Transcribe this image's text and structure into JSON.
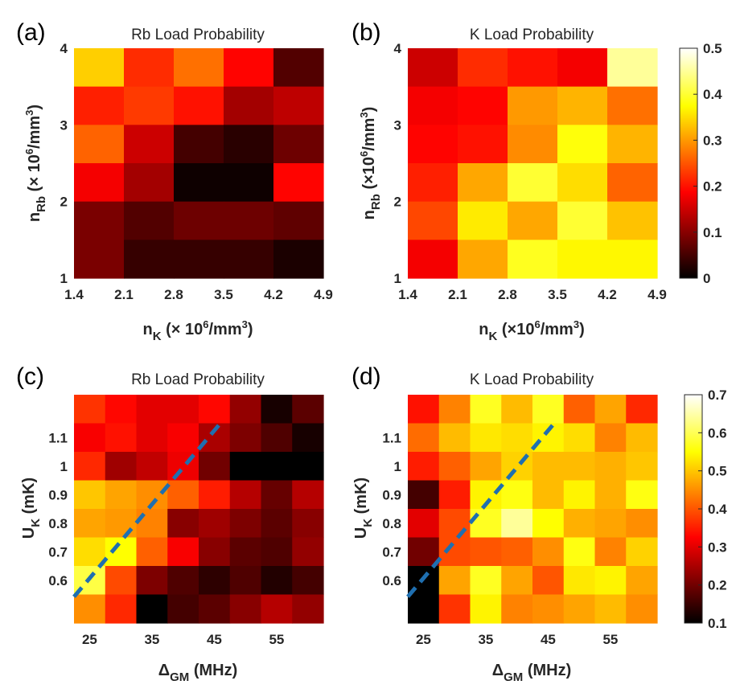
{
  "chart_data": [
    {
      "type": "heatmap",
      "panel_label": "(a)",
      "title": "Rb Load Probability",
      "xlabel": "n",
      "xlabel_sub": "K",
      "xlabel_rest": " (× 10",
      "xlabel_sup": "6",
      "xlabel_end": "/mm",
      "xlabel_sup2": "3",
      "xlabel_close": ")",
      "ylabel": "n",
      "ylabel_sub": "Rb",
      "ylabel_rest": " (× 10",
      "ylabel_sup": "6",
      "ylabel_end": "/mm",
      "ylabel_sup2": "3",
      "ylabel_close": ")",
      "xticks": [
        "1.4",
        "2.1",
        "2.8",
        "3.5",
        "4.2",
        "4.9"
      ],
      "yticks": [
        "1",
        "2",
        "3",
        "4"
      ],
      "clim": [
        0,
        0.5
      ],
      "values": [
        [
          0.34,
          0.22,
          0.27,
          0.19,
          0.06
        ],
        [
          0.21,
          0.23,
          0.2,
          0.12,
          0.14
        ],
        [
          0.26,
          0.15,
          0.05,
          0.03,
          0.08
        ],
        [
          0.18,
          0.12,
          0.01,
          0.01,
          0.19
        ],
        [
          0.09,
          0.06,
          0.08,
          0.08,
          0.07
        ],
        [
          0.09,
          0.04,
          0.04,
          0.04,
          0.02
        ]
      ]
    },
    {
      "type": "heatmap",
      "panel_label": "(b)",
      "title": "K Load Probability",
      "xlabel": "n",
      "xlabel_sub": "K",
      "xlabel_rest": " (×10",
      "xlabel_sup": "6",
      "xlabel_end": "/mm",
      "xlabel_sup2": "3",
      "xlabel_close": ")",
      "ylabel": "n",
      "ylabel_sub": "Rb",
      "ylabel_rest": " (×10",
      "ylabel_sup": "6",
      "ylabel_end": "/mm",
      "ylabel_sup2": "3",
      "ylabel_close": ")",
      "xticks": [
        "1.4",
        "2.1",
        "2.8",
        "3.5",
        "4.2",
        "4.9"
      ],
      "yticks": [
        "1",
        "2",
        "3",
        "4"
      ],
      "clim": [
        0,
        0.5
      ],
      "colorbar_ticks": [
        "0",
        "0.1",
        "0.2",
        "0.3",
        "0.4",
        "0.5"
      ],
      "values": [
        [
          0.15,
          0.22,
          0.2,
          0.18,
          0.45
        ],
        [
          0.18,
          0.19,
          0.3,
          0.32,
          0.27
        ],
        [
          0.19,
          0.2,
          0.29,
          0.38,
          0.32
        ],
        [
          0.21,
          0.31,
          0.4,
          0.35,
          0.26
        ],
        [
          0.24,
          0.36,
          0.31,
          0.4,
          0.33
        ],
        [
          0.18,
          0.31,
          0.39,
          0.37,
          0.37
        ]
      ]
    },
    {
      "type": "heatmap",
      "panel_label": "(c)",
      "title": "Rb Load Probability",
      "xlabel": "Δ",
      "xlabel_sub": "GM",
      "xlabel_rest": " (MHz)",
      "ylabel": "U",
      "ylabel_sub": "K",
      "ylabel_rest": " (mK)",
      "xticks": [
        "25",
        "35",
        "45",
        "55"
      ],
      "yticks": [
        "0.6",
        "0.7",
        "0.8",
        "0.9",
        "1",
        "1.1"
      ],
      "clim": [
        0.1,
        0.7
      ],
      "dashed_line": {
        "from": [
          22.5,
          0.592
        ],
        "to": [
          46,
          1.2
        ]
      },
      "values": [
        [
          0.37,
          0.33,
          0.3,
          0.3,
          0.33,
          0.23,
          0.12,
          0.18
        ],
        [
          0.32,
          0.34,
          0.3,
          0.32,
          0.25,
          0.21,
          0.17,
          0.12
        ],
        [
          0.36,
          0.24,
          0.27,
          0.31,
          0.2,
          0.1,
          0.1,
          0.1
        ],
        [
          0.5,
          0.47,
          0.45,
          0.41,
          0.35,
          0.26,
          0.19,
          0.26
        ],
        [
          0.47,
          0.46,
          0.44,
          0.22,
          0.24,
          0.21,
          0.18,
          0.22
        ],
        [
          0.52,
          0.55,
          0.41,
          0.32,
          0.22,
          0.18,
          0.17,
          0.23
        ],
        [
          0.59,
          0.39,
          0.21,
          0.17,
          0.14,
          0.17,
          0.13,
          0.16
        ],
        [
          0.45,
          0.36,
          0.1,
          0.16,
          0.18,
          0.22,
          0.26,
          0.23
        ]
      ]
    },
    {
      "type": "heatmap",
      "panel_label": "(d)",
      "title": "K Load Probability",
      "xlabel": "Δ",
      "xlabel_sub": "GM",
      "xlabel_rest": " (MHz)",
      "ylabel": "U",
      "ylabel_sub": "K",
      "ylabel_rest": " (mK)",
      "xticks": [
        "25",
        "35",
        "45",
        "55"
      ],
      "yticks": [
        "0.6",
        "0.7",
        "0.8",
        "0.9",
        "1",
        "1.1"
      ],
      "clim": [
        0.1,
        0.7
      ],
      "colorbar_ticks": [
        "0.1",
        "0.2",
        "0.3",
        "0.4",
        "0.5",
        "0.6",
        "0.7"
      ],
      "dashed_line": {
        "from": [
          22.5,
          0.592
        ],
        "to": [
          46,
          1.2
        ]
      },
      "values": [
        [
          0.34,
          0.44,
          0.57,
          0.49,
          0.57,
          0.41,
          0.47,
          0.36
        ],
        [
          0.42,
          0.49,
          0.53,
          0.52,
          0.54,
          0.52,
          0.44,
          0.49
        ],
        [
          0.35,
          0.41,
          0.47,
          0.51,
          0.49,
          0.49,
          0.48,
          0.5
        ],
        [
          0.16,
          0.35,
          0.54,
          0.56,
          0.49,
          0.54,
          0.48,
          0.56
        ],
        [
          0.3,
          0.39,
          0.57,
          0.64,
          0.55,
          0.48,
          0.47,
          0.45
        ],
        [
          0.2,
          0.39,
          0.4,
          0.41,
          0.45,
          0.56,
          0.44,
          0.51
        ],
        [
          0.1,
          0.47,
          0.57,
          0.47,
          0.4,
          0.53,
          0.54,
          0.47
        ],
        [
          0.1,
          0.37,
          0.54,
          0.44,
          0.45,
          0.47,
          0.49,
          0.45
        ]
      ]
    }
  ]
}
